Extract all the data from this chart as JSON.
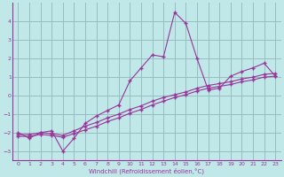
{
  "xlabel": "Windchill (Refroidissement éolien,°C)",
  "bg_color": "#c0e8e8",
  "grid_color": "#96bebe",
  "line_color": "#993399",
  "xlim": [
    -0.5,
    23.5
  ],
  "ylim": [
    -3.5,
    5.0
  ],
  "xticks": [
    0,
    1,
    2,
    3,
    4,
    5,
    6,
    7,
    8,
    9,
    10,
    11,
    12,
    13,
    14,
    15,
    16,
    17,
    18,
    19,
    20,
    21,
    22,
    23
  ],
  "yticks": [
    -3,
    -2,
    -1,
    0,
    1,
    2,
    3,
    4
  ],
  "line1_x": [
    0,
    1,
    2,
    3,
    4,
    5,
    6,
    7,
    8,
    9,
    10,
    11,
    12,
    13,
    14,
    15,
    16,
    17,
    18,
    19,
    20,
    21,
    22,
    23
  ],
  "line1_y": [
    -2.0,
    -2.3,
    -2.0,
    -1.9,
    -3.0,
    -2.3,
    -1.5,
    -1.1,
    -0.8,
    -0.5,
    0.8,
    1.5,
    2.2,
    2.1,
    4.5,
    3.9,
    2.0,
    0.3,
    0.4,
    1.05,
    1.3,
    1.5,
    1.75,
    1.05
  ],
  "line2_x": [
    0,
    1,
    2,
    3,
    4,
    5,
    6,
    7,
    8,
    9,
    10,
    11,
    12,
    13,
    14,
    15,
    16,
    17,
    18,
    19,
    20,
    21,
    22,
    23
  ],
  "line2_y": [
    -2.1,
    -2.1,
    -2.0,
    -2.05,
    -2.15,
    -1.9,
    -1.65,
    -1.45,
    -1.2,
    -1.0,
    -0.75,
    -0.55,
    -0.3,
    -0.1,
    0.05,
    0.2,
    0.4,
    0.55,
    0.65,
    0.75,
    0.9,
    1.0,
    1.15,
    1.2
  ],
  "line3_x": [
    0,
    1,
    2,
    3,
    4,
    5,
    6,
    7,
    8,
    9,
    10,
    11,
    12,
    13,
    14,
    15,
    16,
    17,
    18,
    19,
    20,
    21,
    22,
    23
  ],
  "line3_y": [
    -2.2,
    -2.2,
    -2.1,
    -2.15,
    -2.25,
    -2.05,
    -1.85,
    -1.65,
    -1.4,
    -1.2,
    -0.95,
    -0.75,
    -0.5,
    -0.3,
    -0.1,
    0.05,
    0.25,
    0.4,
    0.5,
    0.6,
    0.75,
    0.85,
    1.0,
    1.05
  ]
}
